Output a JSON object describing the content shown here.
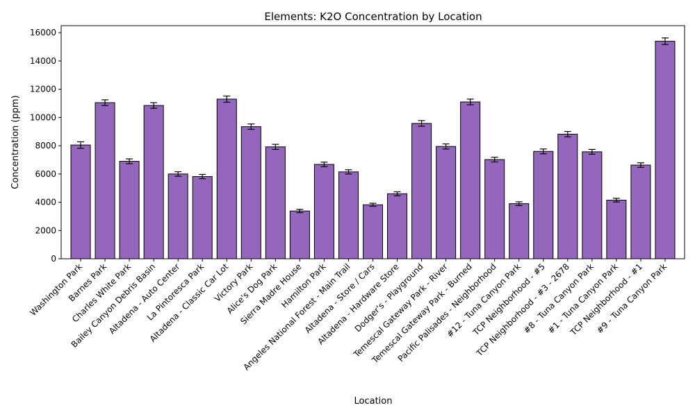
{
  "chart_data": {
    "type": "bar",
    "title": "Elements: K2O Concentration by Location",
    "xlabel": "Location",
    "ylabel": "Concentration (ppm)",
    "ylim": [
      0,
      16500
    ],
    "yticks": [
      0,
      2000,
      4000,
      6000,
      8000,
      10000,
      12000,
      14000,
      16000
    ],
    "grid": false,
    "legend": "none",
    "bar_color": "#9467bd",
    "edge_color": "#000000",
    "categories": [
      "Washington Park",
      "Barnes Park",
      "Charles White Park",
      "Bailey Canyon Debris Basin",
      "Altadena - Auto Center",
      "La Pintoresca Park",
      "Altadena - Classic Car Lot",
      "Victory Park",
      "Alice's Dog Park",
      "Sierra Madre House",
      "Hamilton Park",
      "Angeles National Forest - Main Trail",
      "Altadena - Store / Cars",
      "Altadena - Hardware Store",
      "Dodger's - Playground",
      "Temescal Gateway Park - River",
      "Temescal Gateway Park - Burned",
      "Pacific Palisades - Neighborhood",
      "#12 - Tuna Canyon Park",
      "TCP Neighborhood - #5",
      "TCP Neighborhood - #3 - 2678",
      "#8 - Tuna Canyon Park",
      "#1 - Tuna Canyon Park",
      "TCP Neighborhood - #1",
      "#9 - Tuna Canyon Park"
    ],
    "values": [
      8050,
      11050,
      6900,
      10850,
      6000,
      5820,
      11300,
      9350,
      7920,
      3380,
      6680,
      6150,
      3820,
      4600,
      9580,
      7950,
      11100,
      7020,
      3900,
      7600,
      8820,
      7570,
      4150,
      6630,
      15400
    ],
    "errors": [
      230,
      200,
      170,
      200,
      160,
      150,
      220,
      190,
      180,
      120,
      160,
      150,
      110,
      140,
      200,
      180,
      200,
      170,
      130,
      170,
      190,
      170,
      130,
      160,
      230
    ]
  }
}
